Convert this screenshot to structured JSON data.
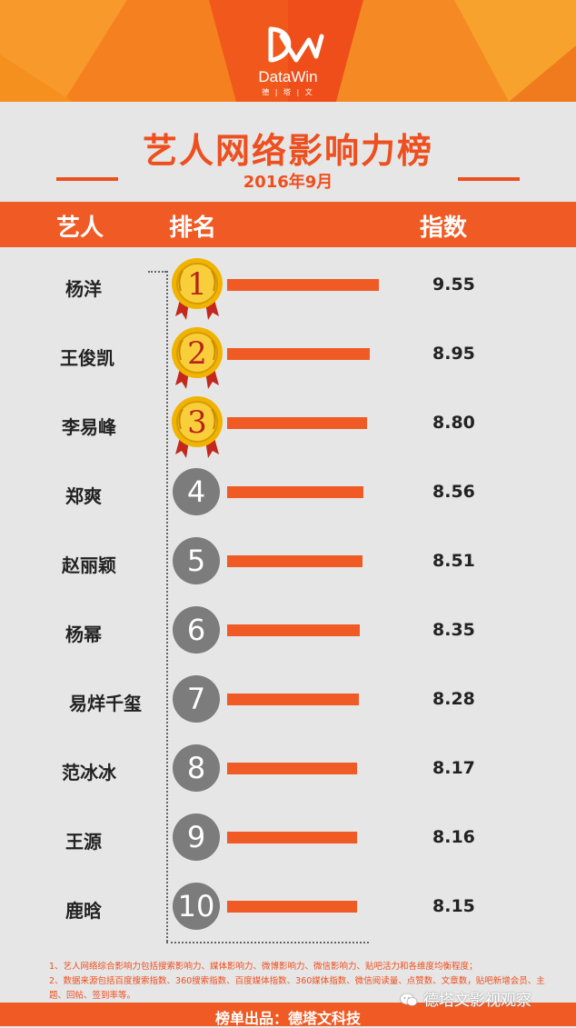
{
  "header": {
    "logo_text": "DataWin",
    "logo_sub": "德 | 塔 | 文",
    "title": "艺人网络影响力榜",
    "date": "2016年9月"
  },
  "columns": {
    "artist": "艺人",
    "rank": "排名",
    "index": "指数"
  },
  "chart_data": {
    "type": "bar",
    "orientation": "horizontal",
    "categories": [
      "杨洋",
      "王俊凯",
      "李易峰",
      "郑爽",
      "赵丽颖",
      "杨幂",
      "易烊千玺",
      "范冰冰",
      "王源",
      "鹿晗"
    ],
    "ranks": [
      "1",
      "2",
      "3",
      "4",
      "5",
      "6",
      "7",
      "8",
      "9",
      "10"
    ],
    "values": [
      9.55,
      8.95,
      8.8,
      8.56,
      8.51,
      8.35,
      8.28,
      8.17,
      8.16,
      8.15
    ],
    "value_labels": [
      "9.55",
      "8.95",
      "8.80",
      "8.56",
      "8.51",
      "8.35",
      "8.28",
      "8.17",
      "8.16",
      "8.15"
    ],
    "title": "艺人网络影响力榜",
    "bar_color": "#f05a24"
  },
  "notes": [
    "1、艺人网络综合影响力包括搜索影响力、媒体影响力、微博影响力、微信影响力、贴吧活力和各维度均衡程度；",
    "2、数据来源包括百度搜索指数、360搜索指数、百度媒体指数、360媒体指数、微信阅读量、点赞数、文章数，贴吧新增会员、主题、回帖、签到率等。"
  ],
  "footer": {
    "text": "榜单出品：德塔文科技"
  },
  "watermark": {
    "text": "德塔文影视观察",
    "icon": "wechat-icon"
  },
  "colors": {
    "accent": "#f05a24",
    "title": "#ee4f1f",
    "circle": "#7c7c7c",
    "medal": "#f0b400"
  }
}
